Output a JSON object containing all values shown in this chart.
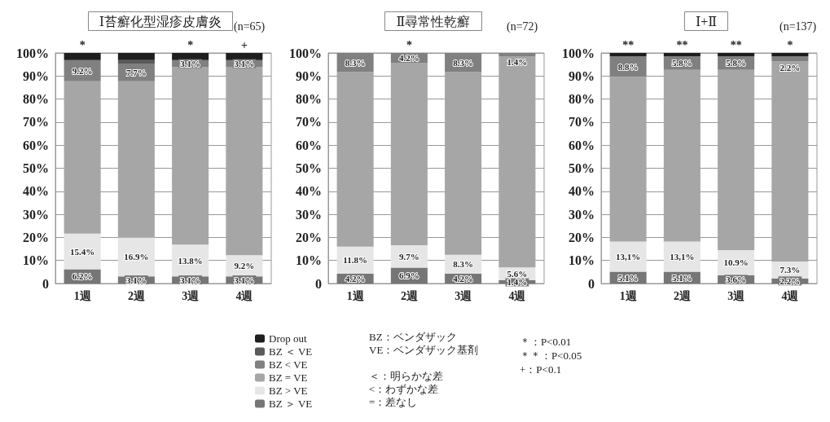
{
  "chart_data": [
    {
      "type": "bar",
      "title": "Ⅰ苔癬化型湿疹皮膚炎",
      "subtitle": "(n=65)",
      "stacked": true,
      "grid": "y",
      "legend": "bottom",
      "categories": [
        "1週",
        "2週",
        "3週",
        "4週"
      ],
      "ylim": [
        0,
        100
      ],
      "yticks": [
        {
          "value": 0,
          "label": "0"
        },
        {
          "value": 10,
          "label": "10%"
        },
        {
          "value": 20,
          "label": "20%"
        },
        {
          "value": 30,
          "label": "30%"
        },
        {
          "value": 40,
          "label": "40%"
        },
        {
          "value": 50,
          "label": "50%"
        },
        {
          "value": 60,
          "label": "60%"
        },
        {
          "value": 70,
          "label": "70%"
        },
        {
          "value": 80,
          "label": "80%"
        },
        {
          "value": 90,
          "label": "90%"
        },
        {
          "value": 100,
          "label": "100%"
        }
      ],
      "series": [
        {
          "name": "BZ ＞ VE",
          "color": "#767676",
          "values": [
            6.2,
            3.1,
            3.1,
            3.1
          ],
          "value_labels": [
            "6.2%",
            "3.1%",
            "3.1%",
            "3.1%"
          ]
        },
        {
          "name": "BZ > VE",
          "color": "#e6e6e6",
          "values": [
            15.4,
            16.9,
            13.8,
            9.2
          ],
          "value_labels": [
            "15.4%",
            "16.9%",
            "13.8%",
            "9.2%"
          ]
        },
        {
          "name": "BZ = VE",
          "color": "#a6a6a6",
          "values": [
            66.1,
            67.7,
            76.9,
            81.5
          ]
        },
        {
          "name": "BZ < VE",
          "color": "#808080",
          "values": [
            9.2,
            7.7,
            3.1,
            3.1
          ],
          "value_labels": [
            "9.2%",
            "7.7%",
            "3.1%",
            "3.1%"
          ]
        },
        {
          "name": "BZ ＜ VE",
          "color": "#5a5a5a",
          "values": [
            0,
            1.5,
            0,
            0
          ]
        },
        {
          "name": "Drop out",
          "color": "#1e1e1e",
          "values": [
            3.1,
            3.1,
            3.1,
            3.1
          ]
        }
      ],
      "annotations": [
        {
          "text": "*",
          "x": "1週",
          "y": 100
        },
        {
          "text": "*",
          "x": "3週",
          "y": 100
        },
        {
          "text": "+",
          "x": "4週",
          "y": 100
        },
        "BZ：ベンダザック",
        "VE：ベンダザック基剤",
        "＜：明らかな差",
        "<：わずかな差",
        "=：差なし",
        "＊：P<0.01",
        "＊＊：P<0.05",
        "+：P<0.1"
      ]
    },
    {
      "type": "bar",
      "title": "Ⅱ尋常性乾癬",
      "subtitle": "(n=72)",
      "stacked": true,
      "grid": "y",
      "categories": [
        "1週",
        "2週",
        "3週",
        "4週"
      ],
      "ylim": [
        0,
        100
      ],
      "yticks": [
        {
          "value": 0,
          "label": "0"
        },
        {
          "value": 10,
          "label": "10%"
        },
        {
          "value": 20,
          "label": "20%"
        },
        {
          "value": 30,
          "label": "30%"
        },
        {
          "value": 40,
          "label": "40%"
        },
        {
          "value": 50,
          "label": "50%"
        },
        {
          "value": 60,
          "label": "60%"
        },
        {
          "value": 70,
          "label": "70%"
        },
        {
          "value": 80,
          "label": "80%"
        },
        {
          "value": 90,
          "label": "90%"
        },
        {
          "value": 100,
          "label": "100%"
        }
      ],
      "series": [
        {
          "color": "#767676",
          "values": [
            4.2,
            6.9,
            4.2,
            1.4
          ],
          "value_labels": [
            "4.2%",
            "6.9%",
            "4.2%",
            "1.4%"
          ]
        },
        {
          "color": "#e6e6e6",
          "values": [
            11.8,
            9.7,
            8.3,
            5.6
          ],
          "value_labels": [
            "11.8%",
            "9.7%",
            "8.3%",
            "5.6%"
          ]
        },
        {
          "color": "#a6a6a6",
          "values": [
            75.7,
            79.2,
            79.2,
            91.6
          ]
        },
        {
          "color": "#808080",
          "values": [
            8.3,
            4.2,
            8.3,
            1.4
          ],
          "value_labels": [
            "8.3%",
            "4.2%",
            "8.3%",
            "1.4%"
          ]
        }
      ],
      "annotations": [
        {
          "text": "*",
          "x": "2週",
          "y": 100
        }
      ]
    },
    {
      "type": "bar",
      "title": "Ⅰ+Ⅱ",
      "subtitle": "(n=137)",
      "stacked": true,
      "grid": "y",
      "categories": [
        "1週",
        "2週",
        "3週",
        "4週"
      ],
      "ylim": [
        0,
        100
      ],
      "yticks": [
        {
          "value": 0,
          "label": "0"
        },
        {
          "value": 10,
          "label": "10%"
        },
        {
          "value": 20,
          "label": "20%"
        },
        {
          "value": 30,
          "label": "30%"
        },
        {
          "value": 40,
          "label": "40%"
        },
        {
          "value": 50,
          "label": "50%"
        },
        {
          "value": 60,
          "label": "60%"
        },
        {
          "value": 70,
          "label": "70%"
        },
        {
          "value": 80,
          "label": "80%"
        },
        {
          "value": 90,
          "label": "90%"
        },
        {
          "value": 100,
          "label": "100%"
        }
      ],
      "series": [
        {
          "color": "#767676",
          "values": [
            5.1,
            5.1,
            3.6,
            2.2
          ],
          "value_labels": [
            "5.1%",
            "5.1%",
            "3.6%",
            "2.2%"
          ]
        },
        {
          "color": "#e6e6e6",
          "values": [
            13.1,
            13.1,
            10.9,
            7.3
          ],
          "value_labels": [
            "13,1%",
            "13,1%",
            "10.9%",
            "7.3%"
          ]
        },
        {
          "color": "#a6a6a6",
          "values": [
            71.5,
            74.5,
            78.2,
            86.8
          ]
        },
        {
          "color": "#808080",
          "values": [
            8.8,
            5.8,
            5.8,
            2.2
          ],
          "value_labels": [
            "8.8%",
            "5.8%",
            "5.8%",
            "2.2%"
          ]
        },
        {
          "color": "#1e1e1e",
          "values": [
            1.5,
            1.5,
            1.5,
            1.5
          ]
        }
      ],
      "annotations": [
        {
          "text": "**",
          "x": "1週",
          "y": 100
        },
        {
          "text": "**",
          "x": "2週",
          "y": 100
        },
        {
          "text": "**",
          "x": "3週",
          "y": 100
        },
        {
          "text": "*",
          "x": "4週",
          "y": 100
        }
      ]
    }
  ]
}
